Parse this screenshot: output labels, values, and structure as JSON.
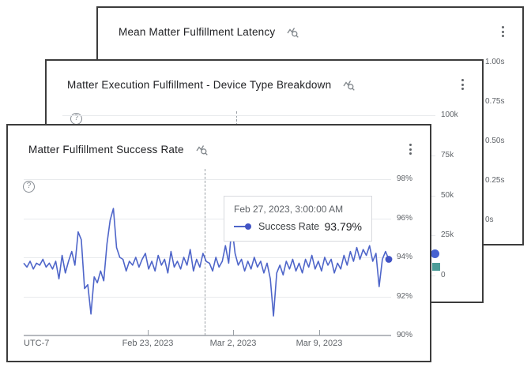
{
  "colors": {
    "series_line": "#4e65c9",
    "series_endpoint": "#4254c5",
    "marker_blue": "#4662d0",
    "marker_teal": "#4c9c98"
  },
  "icons": {
    "menu": "kebab-vertical-dots",
    "explore": "chart-line-magnifier",
    "help": "question-mark-circle"
  },
  "cards": {
    "back": {
      "title": "Mean Matter Fulfillment Latency",
      "y_ticks": [
        "1.00s",
        "0.75s",
        "0.50s",
        "0.25s",
        "0s"
      ]
    },
    "middle": {
      "title": "Matter Execution Fulfillment - Device Type Breakdown",
      "y_ticks": [
        "100k",
        "75k",
        "50k",
        "25k",
        "0"
      ]
    },
    "front": {
      "title": "Matter Fulfillment Success Rate",
      "timezone_label": "UTC-7",
      "y_ticks": [
        "98%",
        "96%",
        "94%",
        "92%",
        "90%"
      ],
      "x_ticks": [
        "Feb 23, 2023",
        "Mar 2, 2023",
        "Mar 9, 2023"
      ],
      "tooltip": {
        "timestamp": "Feb 27, 2023, 3:00:00 AM",
        "series_label": "Success Rate",
        "value": "93.79%"
      }
    }
  },
  "chart_data": [
    {
      "panel": "front",
      "type": "line",
      "title": "Matter Fulfillment Success Rate",
      "ylim": [
        90,
        98
      ],
      "y_tick_labels": [
        "98%",
        "96%",
        "94%",
        "92%",
        "90%"
      ],
      "x_tick_labels": [
        "Feb 23, 2023",
        "Mar 2, 2023",
        "Mar 9, 2023"
      ],
      "timezone": "UTC-7",
      "grid": true,
      "highlighted_point": {
        "timestamp": "Feb 27, 2023, 3:00:00 AM",
        "value": 93.79
      },
      "series": [
        {
          "name": "Success Rate",
          "color": "#4e65c9",
          "unit": "%",
          "values": [
            93.7,
            93.5,
            93.8,
            93.4,
            93.7,
            93.6,
            93.9,
            93.5,
            93.7,
            93.4,
            93.8,
            92.9,
            94.1,
            93.2,
            93.8,
            94.3,
            93.6,
            95.3,
            94.9,
            92.4,
            92.6,
            91.1,
            93.0,
            92.7,
            93.3,
            92.8,
            94.7,
            95.9,
            96.5,
            94.5,
            94.0,
            93.9,
            93.3,
            93.8,
            93.6,
            94.0,
            93.5,
            93.9,
            94.2,
            93.4,
            93.8,
            93.3,
            94.1,
            93.6,
            93.9,
            93.2,
            94.3,
            93.5,
            93.8,
            93.4,
            94.0,
            93.6,
            94.4,
            93.3,
            93.9,
            93.5,
            94.2,
            93.79,
            93.7,
            93.3,
            94.0,
            93.5,
            93.8,
            94.6,
            93.7,
            95.6,
            94.2,
            93.6,
            93.9,
            93.3,
            93.8,
            93.4,
            94.0,
            93.5,
            93.8,
            93.2,
            93.7,
            92.9,
            91.0,
            93.2,
            93.6,
            93.1,
            93.8,
            93.4,
            93.9,
            93.3,
            93.7,
            93.2,
            93.9,
            93.5,
            94.1,
            93.4,
            93.8,
            93.3,
            94.0,
            93.6,
            93.9,
            93.2,
            93.7,
            93.4,
            94.1,
            93.6,
            94.3,
            93.8,
            94.5,
            93.9,
            94.4,
            94.1,
            94.6,
            93.8,
            94.2,
            92.5,
            93.9,
            94.3,
            93.9
          ]
        }
      ]
    },
    {
      "panel": "middle",
      "type": "line",
      "title": "Matter Execution Fulfillment - Device Type Breakdown",
      "y_tick_labels": [
        "100k",
        "75k",
        "50k",
        "25k",
        "0"
      ],
      "visible_series_markers": [
        {
          "shape": "circle",
          "color": "#4662d0"
        },
        {
          "shape": "square",
          "color": "#4c9c98"
        }
      ]
    },
    {
      "panel": "back",
      "type": "line",
      "title": "Mean Matter Fulfillment Latency",
      "y_tick_labels": [
        "1.00s",
        "0.75s",
        "0.50s",
        "0.25s",
        "0s"
      ]
    }
  ]
}
